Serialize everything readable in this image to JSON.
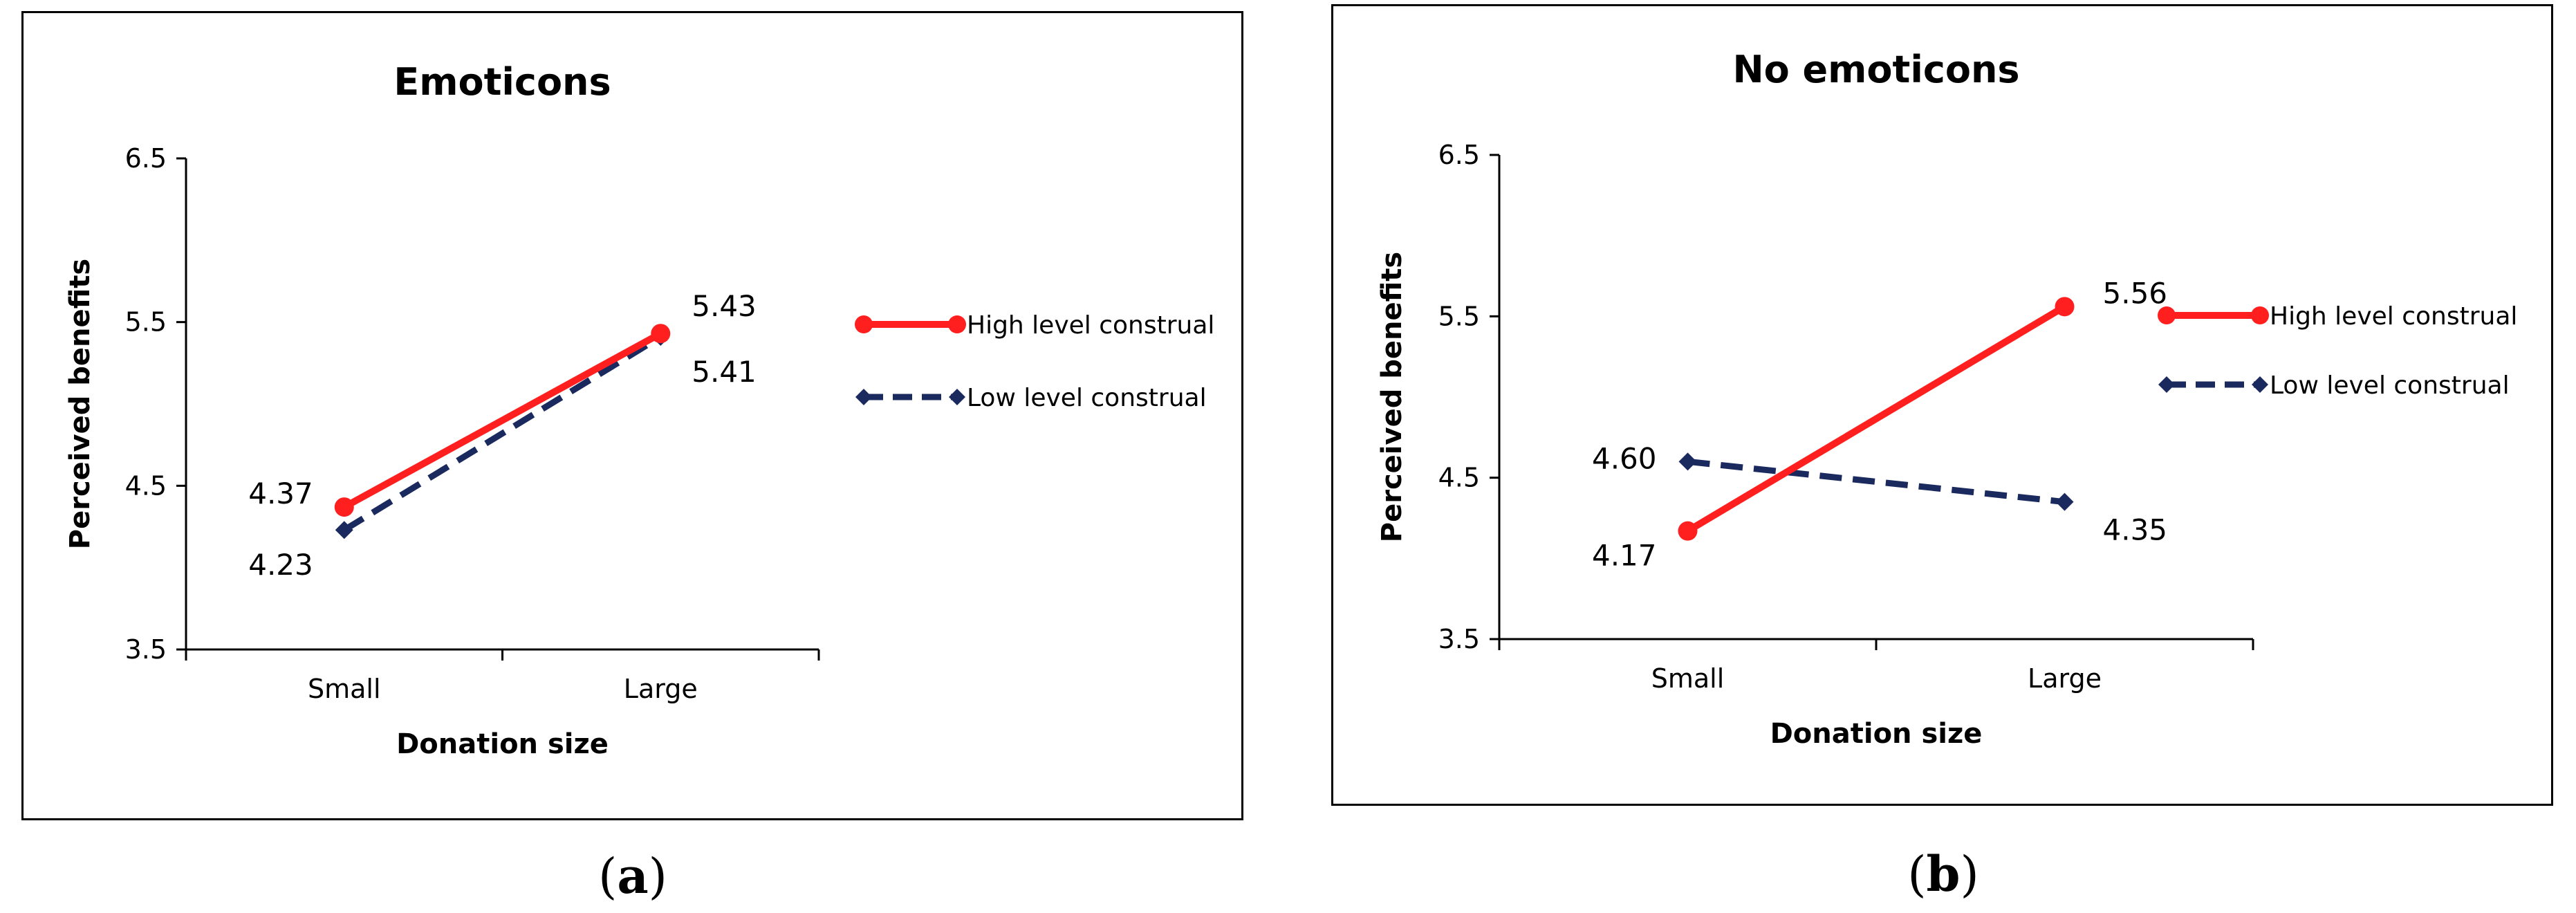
{
  "chart_data": [
    {
      "type": "line",
      "title": "Emoticons",
      "xlabel": "Donation size",
      "ylabel": "Perceived benefits",
      "categories": [
        "Small",
        "Large"
      ],
      "ylim": [
        3.5,
        6.5
      ],
      "yticks": [
        "3.5",
        "4.5",
        "5.5",
        "6.5"
      ],
      "series": [
        {
          "name": "High level construal",
          "values": [
            4.37,
            5.43
          ],
          "labels": [
            "4.37",
            "5.43"
          ],
          "color": "#ff1f1f",
          "style": "solid",
          "marker": "circle"
        },
        {
          "name": "Low level construal",
          "values": [
            4.23,
            5.41
          ],
          "labels": [
            "4.23",
            "5.41"
          ],
          "color": "#1a2a5e",
          "style": "dashed",
          "marker": "diamond"
        }
      ],
      "legend": "right",
      "caption": {
        "open": "(",
        "letter": "a",
        "close": ")"
      }
    },
    {
      "type": "line",
      "title": "No emoticons",
      "xlabel": "Donation size",
      "ylabel": "Perceived benefits",
      "categories": [
        "Small",
        "Large"
      ],
      "ylim": [
        3.5,
        6.5
      ],
      "yticks": [
        "3.5",
        "4.5",
        "5.5",
        "6.5"
      ],
      "series": [
        {
          "name": "High level construal",
          "values": [
            4.17,
            5.56
          ],
          "labels": [
            "4.17",
            "5.56"
          ],
          "color": "#ff1f1f",
          "style": "solid",
          "marker": "circle"
        },
        {
          "name": "Low level construal",
          "values": [
            4.6,
            4.35
          ],
          "labels": [
            "4.60",
            "4.35"
          ],
          "color": "#1a2a5e",
          "style": "dashed",
          "marker": "diamond"
        }
      ],
      "legend": "right",
      "caption": {
        "open": "(",
        "letter": "b",
        "close": ")"
      }
    }
  ]
}
